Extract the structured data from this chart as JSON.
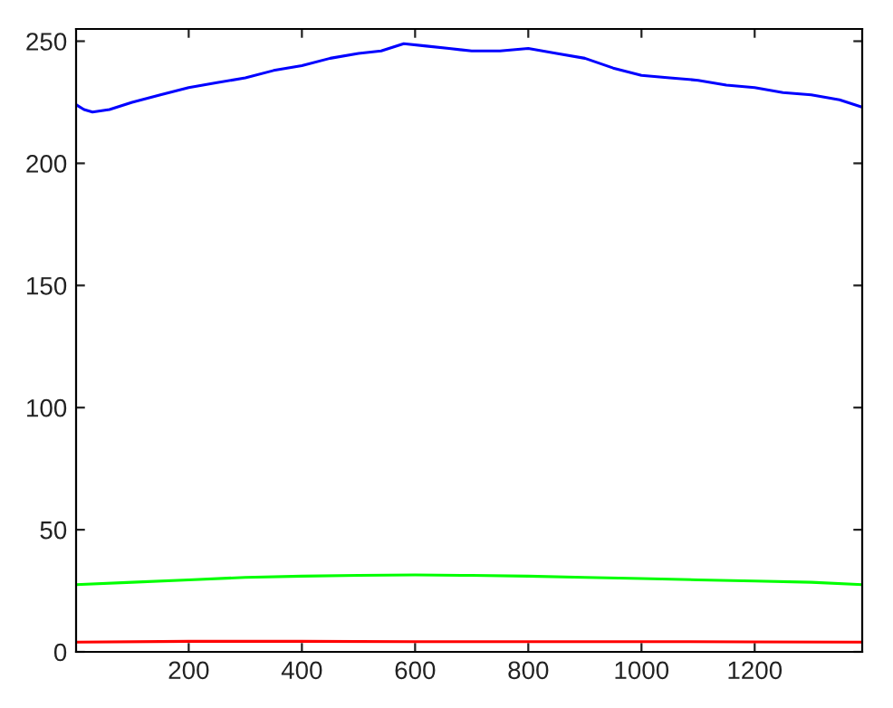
{
  "chart_data": {
    "type": "line",
    "xlim": [
      1,
      1390
    ],
    "ylim": [
      0,
      255
    ],
    "xticks": [
      200,
      400,
      600,
      800,
      1000,
      1200
    ],
    "yticks": [
      0,
      50,
      100,
      150,
      200,
      250
    ],
    "grid": false,
    "marker": "none",
    "line_style": "solid",
    "series": [
      {
        "color": "#0000ff",
        "x": [
          1,
          15,
          30,
          60,
          100,
          150,
          200,
          250,
          300,
          350,
          400,
          450,
          500,
          540,
          580,
          620,
          660,
          700,
          750,
          800,
          850,
          900,
          950,
          1000,
          1050,
          1100,
          1150,
          1200,
          1250,
          1300,
          1350,
          1390
        ],
        "values": [
          224,
          222,
          221,
          222,
          225,
          228,
          231,
          233,
          235,
          238,
          240,
          243,
          245,
          246,
          249,
          248,
          247,
          246,
          246,
          247,
          245,
          243,
          239,
          236,
          235,
          234,
          232,
          231,
          229,
          228,
          226,
          223
        ]
      },
      {
        "color": "#00ff00",
        "x": [
          1,
          100,
          200,
          300,
          400,
          500,
          600,
          700,
          800,
          900,
          1000,
          1100,
          1200,
          1300,
          1390
        ],
        "values": [
          27.5,
          28.5,
          29.5,
          30.5,
          31,
          31.3,
          31.5,
          31.3,
          31,
          30.5,
          30,
          29.5,
          29,
          28.5,
          27.5
        ]
      },
      {
        "color": "#ff0000",
        "x": [
          1,
          200,
          400,
          600,
          800,
          1000,
          1200,
          1390
        ],
        "values": [
          4,
          4.3,
          4.3,
          4.2,
          4.2,
          4.2,
          4.1,
          4
        ]
      }
    ]
  }
}
